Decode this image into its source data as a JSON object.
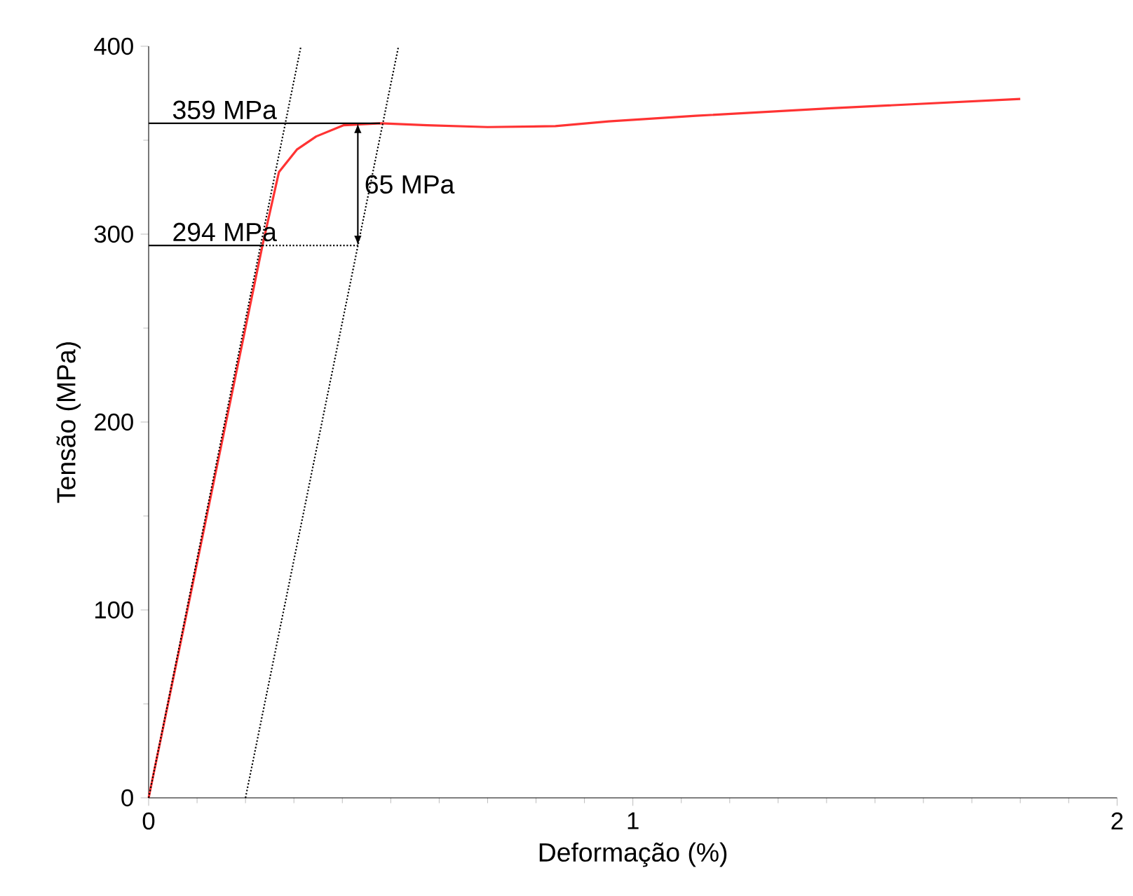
{
  "chart_data": {
    "type": "line",
    "xlabel": "Deformação (%)",
    "ylabel": "Tensão (MPa)",
    "xlim": [
      0,
      2
    ],
    "ylim": [
      0,
      400
    ],
    "xticks": [
      0,
      1,
      2
    ],
    "yticks": [
      0,
      100,
      200,
      300,
      400
    ],
    "series": [
      {
        "color": "#ff3333",
        "line_style": "solid",
        "x": [
          0,
          0.235,
          0.269,
          0.306,
          0.346,
          0.403,
          0.48,
          0.575,
          0.7,
          0.84,
          0.95,
          1.13,
          1.41,
          1.8
        ],
        "values": [
          0,
          294,
          333,
          345,
          352,
          358,
          359,
          358,
          357,
          357.5,
          360,
          363,
          367,
          372
        ]
      },
      {
        "color": "#000000",
        "line_style": "dotted",
        "x": [
          0,
          0.3145
        ],
        "values": [
          0,
          400
        ]
      },
      {
        "color": "#000000",
        "line_style": "dotted",
        "x": [
          0.2,
          0.516
        ],
        "values": [
          0,
          400
        ]
      },
      {
        "name": "359 MPa",
        "color": "#000000",
        "line_style": "solid",
        "x": [
          0,
          0.478
        ],
        "values": [
          359,
          359
        ]
      },
      {
        "name": "294 MPa",
        "color": "#000000",
        "line_style": "solid",
        "x": [
          0,
          0.235
        ],
        "values": [
          294,
          294
        ]
      },
      {
        "color": "#000000",
        "line_style": "dotted",
        "x": [
          0.235,
          0.432
        ],
        "values": [
          294,
          294
        ]
      }
    ],
    "annotations": [
      "65 MPa"
    ]
  }
}
